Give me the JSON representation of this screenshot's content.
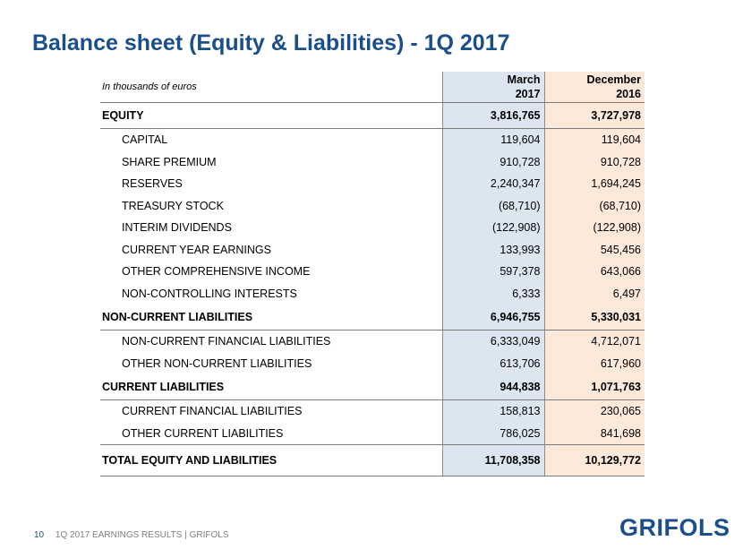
{
  "slide": {
    "title": "Balance sheet (Equity & Liabilities) - 1Q 2017",
    "units_note": "In thousands of euros",
    "page_number": "10",
    "footer_text": "1Q 2017 EARNINGS RESULTS | GRIFOLS",
    "logo_text": "GRIFOLS"
  },
  "table": {
    "columns": [
      {
        "line1": "March",
        "line2": "2017"
      },
      {
        "line1": "December",
        "line2": "2016"
      }
    ],
    "rows": [
      {
        "label": "EQUITY",
        "v1": "3,816,765",
        "v2": "3,727,978"
      },
      {
        "label": "CAPITAL",
        "v1": "119,604",
        "v2": "119,604"
      },
      {
        "label": "SHARE PREMIUM",
        "v1": "910,728",
        "v2": "910,728"
      },
      {
        "label": "RESERVES",
        "v1": "2,240,347",
        "v2": "1,694,245"
      },
      {
        "label": "TREASURY STOCK",
        "v1": "(68,710)",
        "v2": "(68,710)"
      },
      {
        "label": "INTERIM DIVIDENDS",
        "v1": "(122,908)",
        "v2": "(122,908)"
      },
      {
        "label": "CURRENT YEAR EARNINGS",
        "v1": "133,993",
        "v2": "545,456"
      },
      {
        "label": "OTHER COMPREHENSIVE INCOME",
        "v1": "597,378",
        "v2": "643,066"
      },
      {
        "label": "NON-CONTROLLING INTERESTS",
        "v1": "6,333",
        "v2": "6,497"
      },
      {
        "label": "NON-CURRENT LIABILITIES",
        "v1": "6,946,755",
        "v2": "5,330,031"
      },
      {
        "label": "NON-CURRENT FINANCIAL LIABILITIES",
        "v1": "6,333,049",
        "v2": "4,712,071"
      },
      {
        "label": "OTHER NON-CURRENT LIABILITIES",
        "v1": "613,706",
        "v2": "617,960"
      },
      {
        "label": "CURRENT LIABILITIES",
        "v1": "944,838",
        "v2": "1,071,763"
      },
      {
        "label": "CURRENT FINANCIAL LIABILITIES",
        "v1": "158,813",
        "v2": "230,065"
      },
      {
        "label": "OTHER CURRENT LIABILITIES",
        "v1": "786,025",
        "v2": "841,698"
      },
      {
        "label": "TOTAL EQUITY AND LIABILITIES",
        "v1": "11,708,358",
        "v2": "10,129,772"
      }
    ]
  },
  "colors": {
    "title": "#1b4f8a",
    "col_march_bg": "#dce6f1",
    "col_december_bg": "#fce9da",
    "footer_text": "#7f7f7f"
  }
}
